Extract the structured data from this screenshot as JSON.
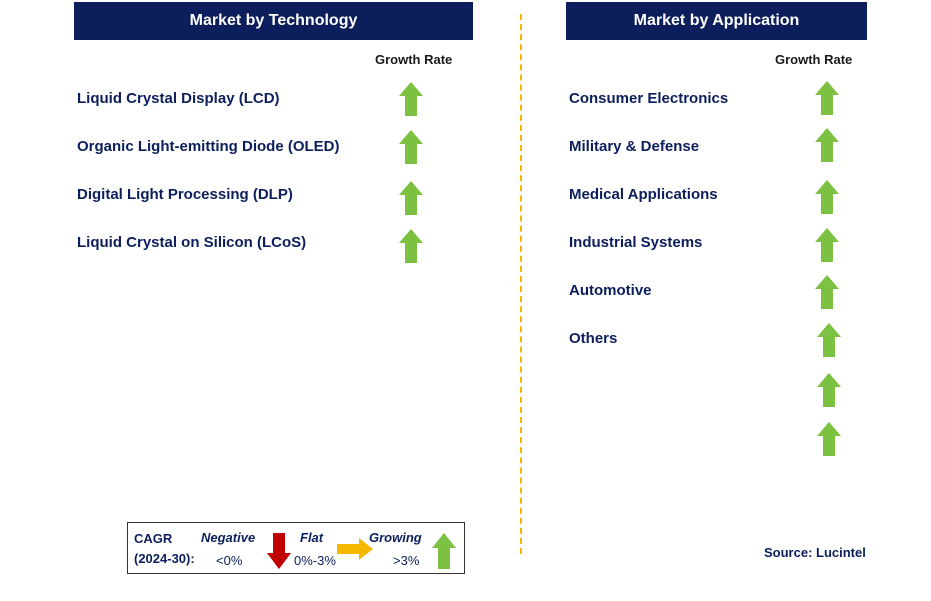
{
  "technology": {
    "header": "Market by Technology",
    "growth_label": "Growth Rate",
    "items": [
      {
        "label": "Liquid Crystal Display (LCD)",
        "trend": "growing"
      },
      {
        "label": "Organic Light-emitting Diode (OLED)",
        "trend": "growing"
      },
      {
        "label": "Digital Light Processing (DLP)",
        "trend": "growing"
      },
      {
        "label": "Liquid Crystal on Silicon (LCoS)",
        "trend": "growing"
      }
    ]
  },
  "application": {
    "header": "Market by Application",
    "growth_label": "Growth Rate",
    "items": [
      {
        "label": "Consumer Electronics",
        "trend": "growing"
      },
      {
        "label": "Military & Defense",
        "trend": "growing"
      },
      {
        "label": "Medical Applications",
        "trend": "growing"
      },
      {
        "label": "Industrial Systems",
        "trend": "growing"
      },
      {
        "label": "Automotive",
        "trend": "growing"
      },
      {
        "label": "Others",
        "trend": "growing"
      }
    ],
    "extra_arrows": 2
  },
  "legend": {
    "cagr_line1": "CAGR",
    "cagr_line2": "(2024-30):",
    "negative_label": "Negative",
    "negative_range": "<0%",
    "flat_label": "Flat",
    "flat_range": "0%-3%",
    "growing_label": "Growing",
    "growing_range": ">3%"
  },
  "source": "Source: Lucintel",
  "colors": {
    "header_bg": "#0c1f5c",
    "item_text": "#0c1f5c",
    "divider": "#f5b800",
    "up_arrow": "#7cc142",
    "down_arrow": "#c00000",
    "flat_arrow": "#f5b800",
    "legend_label": "#0c1f5c"
  }
}
